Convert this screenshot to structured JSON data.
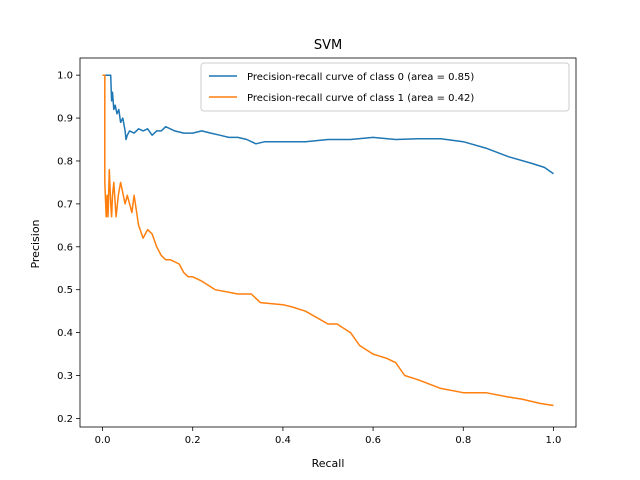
{
  "chart_data": {
    "type": "line",
    "title": "SVM",
    "xlabel": "Recall",
    "ylabel": "Precision",
    "xlim": [
      -0.05,
      1.05
    ],
    "ylim": [
      0.18,
      1.04
    ],
    "xticks": [
      "0.0",
      "0.2",
      "0.4",
      "0.6",
      "0.8",
      "1.0"
    ],
    "yticks": [
      "0.2",
      "0.3",
      "0.4",
      "0.5",
      "0.6",
      "0.7",
      "0.8",
      "0.9",
      "1.0"
    ],
    "grid": false,
    "legend_position": "top-right",
    "series": [
      {
        "name": "Precision-recall curve of class 0 (area = 0.85)",
        "color": "#1f77b4",
        "x": [
          0.0,
          0.01,
          0.018,
          0.02,
          0.022,
          0.025,
          0.028,
          0.032,
          0.036,
          0.04,
          0.045,
          0.05,
          0.052,
          0.055,
          0.06,
          0.07,
          0.08,
          0.09,
          0.1,
          0.11,
          0.12,
          0.13,
          0.14,
          0.15,
          0.16,
          0.18,
          0.2,
          0.22,
          0.24,
          0.26,
          0.28,
          0.3,
          0.32,
          0.34,
          0.36,
          0.38,
          0.4,
          0.42,
          0.45,
          0.5,
          0.55,
          0.6,
          0.65,
          0.7,
          0.75,
          0.8,
          0.85,
          0.9,
          0.95,
          0.98,
          1.0
        ],
        "y": [
          1.0,
          1.0,
          1.0,
          0.94,
          0.96,
          0.92,
          0.93,
          0.91,
          0.92,
          0.89,
          0.9,
          0.87,
          0.85,
          0.86,
          0.87,
          0.865,
          0.875,
          0.87,
          0.875,
          0.86,
          0.87,
          0.87,
          0.88,
          0.875,
          0.87,
          0.865,
          0.865,
          0.87,
          0.865,
          0.86,
          0.855,
          0.855,
          0.85,
          0.84,
          0.845,
          0.845,
          0.845,
          0.845,
          0.845,
          0.85,
          0.85,
          0.855,
          0.85,
          0.852,
          0.852,
          0.845,
          0.83,
          0.81,
          0.795,
          0.785,
          0.77
        ]
      },
      {
        "name": "Precision-recall curve of class 1 (area = 0.42)",
        "color": "#ff7f0e",
        "x": [
          0.0,
          0.005,
          0.005,
          0.008,
          0.01,
          0.012,
          0.015,
          0.018,
          0.02,
          0.022,
          0.025,
          0.03,
          0.035,
          0.04,
          0.05,
          0.055,
          0.06,
          0.065,
          0.07,
          0.08,
          0.09,
          0.1,
          0.11,
          0.12,
          0.13,
          0.14,
          0.15,
          0.17,
          0.18,
          0.19,
          0.2,
          0.22,
          0.25,
          0.3,
          0.33,
          0.35,
          0.4,
          0.42,
          0.45,
          0.5,
          0.52,
          0.55,
          0.57,
          0.6,
          0.63,
          0.65,
          0.67,
          0.7,
          0.75,
          0.8,
          0.85,
          0.9,
          0.93,
          0.97,
          1.0
        ],
        "y": [
          1.0,
          1.0,
          0.75,
          0.67,
          0.72,
          0.67,
          0.78,
          0.7,
          0.67,
          0.72,
          0.75,
          0.67,
          0.72,
          0.75,
          0.7,
          0.72,
          0.7,
          0.68,
          0.72,
          0.65,
          0.62,
          0.64,
          0.63,
          0.6,
          0.58,
          0.57,
          0.57,
          0.56,
          0.54,
          0.53,
          0.53,
          0.52,
          0.5,
          0.49,
          0.49,
          0.47,
          0.465,
          0.46,
          0.45,
          0.42,
          0.42,
          0.4,
          0.37,
          0.35,
          0.34,
          0.33,
          0.3,
          0.29,
          0.27,
          0.26,
          0.26,
          0.25,
          0.245,
          0.235,
          0.23
        ]
      }
    ]
  }
}
